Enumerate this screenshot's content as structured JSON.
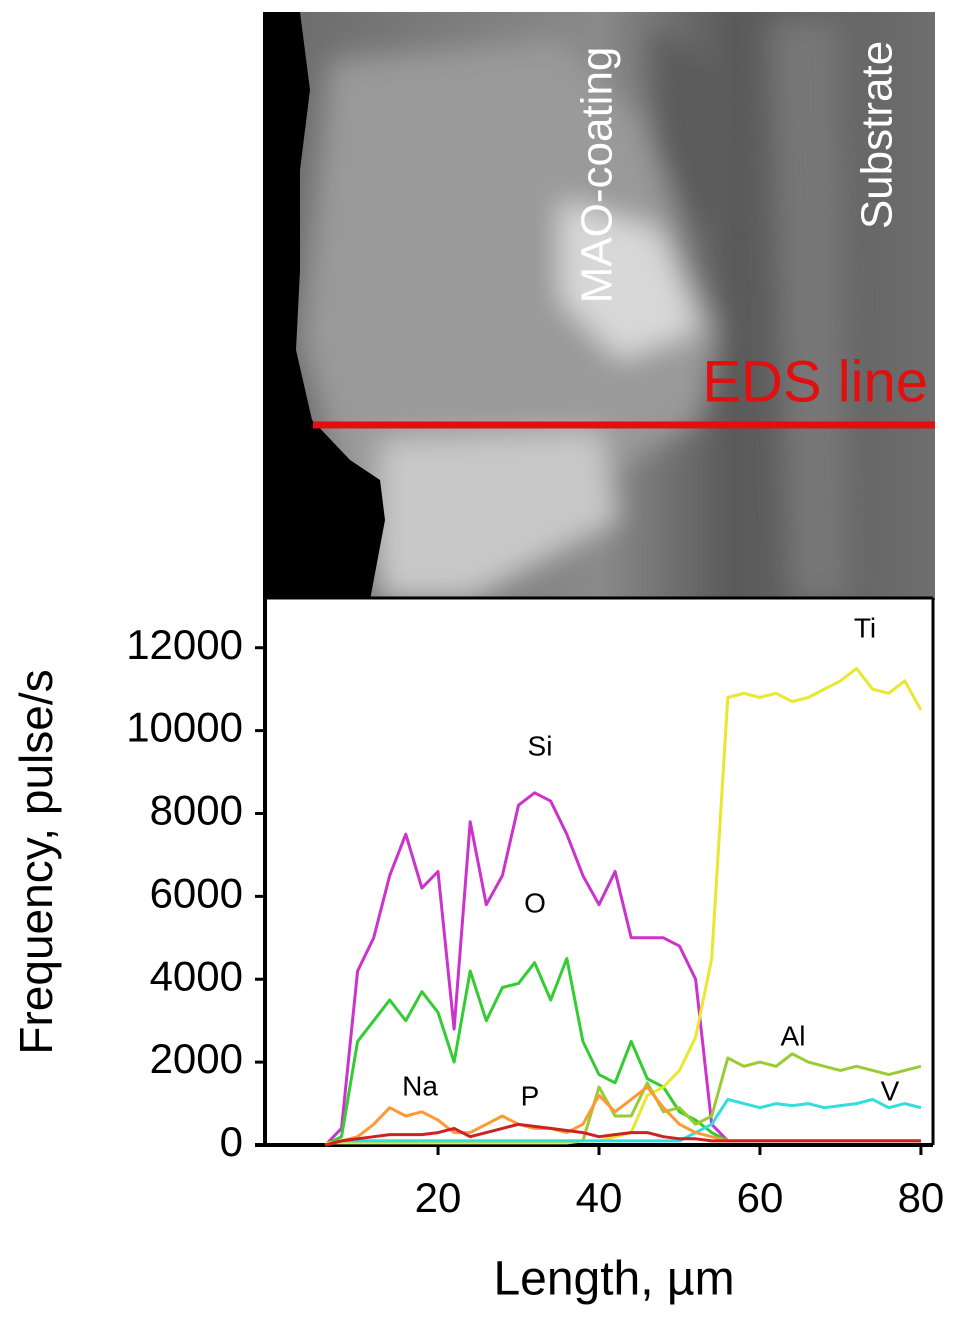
{
  "image": {
    "labels": [
      "MAO-coating",
      "Substrate",
      "EDS line"
    ]
  },
  "chart_data": {
    "type": "line",
    "y_label": "Frequency, pulse/s",
    "x_label": "Length, µm",
    "x": [
      6,
      8,
      10,
      12,
      14,
      16,
      18,
      20,
      22,
      24,
      26,
      28,
      30,
      32,
      34,
      36,
      38,
      40,
      42,
      44,
      46,
      48,
      50,
      52,
      54,
      56,
      58,
      60,
      62,
      64,
      66,
      68,
      70,
      72,
      74,
      76,
      78,
      80
    ],
    "series": [
      {
        "name": "Si",
        "color": "#cc33cc",
        "values": [
          0,
          400,
          4200,
          5000,
          6500,
          7500,
          6200,
          6600,
          2800,
          7800,
          5800,
          6500,
          8200,
          8500,
          8300,
          7500,
          6500,
          5800,
          6600,
          5000,
          5000,
          5000,
          4800,
          4000,
          500,
          100,
          100,
          100,
          100,
          100,
          100,
          100,
          100,
          100,
          100,
          100,
          100,
          100
        ]
      },
      {
        "name": "O",
        "color": "#33cc33",
        "values": [
          0,
          200,
          2500,
          3000,
          3500,
          3000,
          3700,
          3200,
          2000,
          4200,
          3000,
          3800,
          3900,
          4400,
          3500,
          4500,
          2500,
          1700,
          1500,
          2500,
          1600,
          1400,
          800,
          600,
          300,
          100,
          100,
          100,
          100,
          100,
          100,
          100,
          100,
          100,
          100,
          100,
          100,
          100
        ]
      },
      {
        "name": "Ti",
        "color": "#e8e830",
        "values": [
          50,
          50,
          50,
          50,
          50,
          50,
          50,
          50,
          50,
          50,
          50,
          50,
          50,
          50,
          50,
          50,
          100,
          100,
          200,
          300,
          1200,
          1400,
          1800,
          2600,
          4500,
          10800,
          10900,
          10800,
          10900,
          10700,
          10800,
          11000,
          11200,
          11500,
          11000,
          10900,
          11200,
          10500
        ]
      },
      {
        "name": "Al",
        "color": "#99cc33",
        "values": [
          0,
          100,
          100,
          100,
          100,
          100,
          100,
          100,
          100,
          100,
          100,
          100,
          100,
          100,
          100,
          100,
          100,
          1400,
          700,
          700,
          1500,
          800,
          900,
          500,
          700,
          2100,
          1900,
          2000,
          1900,
          2200,
          2000,
          1900,
          1800,
          1900,
          1800,
          1700,
          1800,
          1900
        ]
      },
      {
        "name": "V",
        "color": "#33dddd",
        "values": [
          0,
          100,
          100,
          100,
          100,
          100,
          100,
          100,
          100,
          100,
          100,
          100,
          100,
          100,
          100,
          100,
          100,
          100,
          100,
          100,
          100,
          100,
          100,
          300,
          500,
          1100,
          1000,
          900,
          1000,
          950,
          1000,
          900,
          950,
          1000,
          1100,
          900,
          1000,
          900
        ]
      },
      {
        "name": "Na",
        "color": "#ff9933",
        "values": [
          0,
          100,
          200,
          500,
          900,
          700,
          800,
          600,
          300,
          300,
          500,
          700,
          500,
          400,
          400,
          300,
          500,
          1200,
          800,
          1100,
          1400,
          900,
          500,
          300,
          200,
          100,
          100,
          100,
          100,
          100,
          100,
          100,
          100,
          100,
          100,
          100,
          100,
          100
        ]
      },
      {
        "name": "P",
        "color": "#cc2222",
        "values": [
          0,
          100,
          150,
          200,
          250,
          250,
          250,
          300,
          400,
          200,
          300,
          400,
          500,
          450,
          400,
          350,
          300,
          200,
          250,
          300,
          300,
          200,
          150,
          150,
          100,
          100,
          100,
          100,
          100,
          100,
          100,
          100,
          100,
          100,
          100,
          100,
          100,
          100
        ]
      }
    ],
    "xlim": [
      -1.5,
      81.5
    ],
    "ylim": [
      0,
      13200
    ],
    "xticks": [
      20,
      40,
      60,
      80
    ],
    "yticks": [
      0,
      2000,
      4000,
      6000,
      8000,
      10000,
      12000
    ]
  }
}
